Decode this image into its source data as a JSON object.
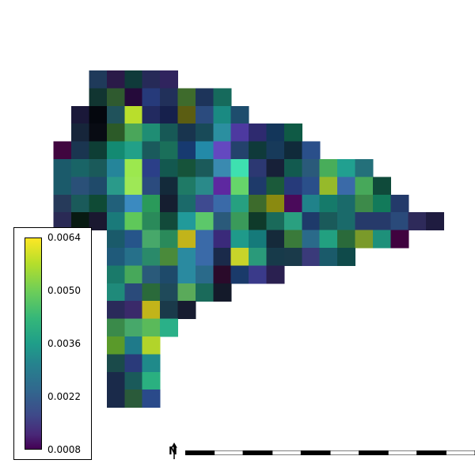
{
  "chart_data": {
    "type": "heatmap",
    "colormap": "viridis",
    "value_range": [
      0.0008,
      0.0064
    ],
    "colorbar_ticks": [
      "0.0064",
      "0.0050",
      "0.0036",
      "0.0022",
      "0.0008"
    ],
    "grid_origin_col": 0,
    "rows": [
      {
        "start": 5,
        "cells": [
          "#1f3a5a",
          "#2a1a48",
          "#0f3a3a",
          "#262a58",
          "#30245e"
        ]
      },
      {
        "start": 5,
        "cells": [
          "#113531",
          "#2f5a2f",
          "#250a3a",
          "#263a7a",
          "#21305a",
          "#3e6b2c",
          "#1d345a",
          "#166a5c"
        ]
      },
      {
        "start": 4,
        "cells": [
          "#1a1839",
          "#04070e",
          "#20525b",
          "#b9de2c",
          "#222a60",
          "#16204c",
          "#5b5d12",
          "#2b4b7e",
          "#1a8a82",
          "#1e4d6d"
        ]
      },
      {
        "start": 4,
        "cells": [
          "#16253a",
          "#080b13",
          "#2c5a28",
          "#4aa65a",
          "#1f8d74",
          "#175956",
          "#18344e",
          "#184a58",
          "#2b8fa0",
          "#4d39a0",
          "#2e2a6f",
          "#13365a",
          "#0f5a45"
        ]
      },
      {
        "start": 3,
        "cells": [
          "#40063f",
          "#1a3550",
          "#0e3e35",
          "#138a72",
          "#22a088",
          "#1a5a5c",
          "#1a6f5a",
          "#173a70",
          "#238aa8",
          "#6448c0",
          "#24426c",
          "#0f3a3a",
          "#173a5a",
          "#102a3a",
          "#2a4f8a"
        ]
      },
      {
        "start": 3,
        "cells": [
          "#1b5a6a",
          "#196466",
          "#1a5a5a",
          "#25859a",
          "#9ce84e",
          "#2b3f88",
          "#13584f",
          "#16533a",
          "#1b5a5a",
          "#3a8ab0",
          "#3ee0b0",
          "#2c3872",
          "#172038",
          "#125a4f",
          "#2a5a7a",
          "#48ad5a",
          "#21a090",
          "#24707a"
        ]
      },
      {
        "start": 3,
        "cells": [
          "#1b5a6a",
          "#2a5078",
          "#1f4a6a",
          "#2a9a8a",
          "#9ee856",
          "#2b4b7e",
          "#132a3a",
          "#1f7a66",
          "#2a8a8a",
          "#5e28a0",
          "#66d56a",
          "#1e3a6a",
          "#1b5a3a",
          "#263a7a",
          "#2a4f8a",
          "#96ba2a",
          "#3a6aa8",
          "#47a85a",
          "#0f4a3a"
        ]
      },
      {
        "start": 3,
        "cells": [
          "#263a5a",
          "#1a5a5a",
          "#0f4a35",
          "#21607a",
          "#3b8ac0",
          "#2a9a5a",
          "#151e30",
          "#1b6a6a",
          "#3e4a90",
          "#3a6aa8",
          "#26a080",
          "#3d6b2c",
          "#8a8a10",
          "#4a0a5a",
          "#20828a",
          "#157a6a",
          "#1a6a6a",
          "#3d8a4a",
          "#127a5a",
          "#233a6a"
        ]
      },
      {
        "start": 3,
        "cells": [
          "#2a2a55",
          "#081a12",
          "#1a1830",
          "#1a7a7a",
          "#5fc85a",
          "#2a8a5a",
          "#124a3a",
          "#219a9a",
          "#5cc86a",
          "#2a5a7a",
          "#3a9a5a",
          "#0f3a2a",
          "#1a6a5a",
          "#2aa080",
          "#1e3a6a",
          "#1a5a5a",
          "#1a6a6a",
          "#263a6a",
          "#263a6a",
          "#2a4a7a",
          "#2e2a5a",
          "#1f1c40"
        ]
      },
      {
        "start": 3,
        "cells": [
          "#ffffff00",
          "#ffffff00",
          "#ffffff00",
          "#1a5a6a",
          "#26558a",
          "#47a86a",
          "#2a8a5a",
          "#c2b41a",
          "#3a6aa8",
          "#3a2a7a",
          "#1f9a8a",
          "#157a7a",
          "#152a3a",
          "#3a7a3a",
          "#2a6a8a",
          "#22a080",
          "#2a6a3a",
          "#7a9a2a",
          "#1e907a",
          "#40023f"
        ]
      },
      {
        "start": 3,
        "cells": [
          "#ffffff00",
          "#ffffff00",
          "#ffffff00",
          "#1f5a7a",
          "#26708a",
          "#2a8a6a",
          "#4a8a3a",
          "#2a8aa0",
          "#3a6aa8",
          "#1a2a4a",
          "#c8d42a",
          "#2a9a7a",
          "#173a4a",
          "#1a3a4a",
          "#3a3a7a",
          "#1a5a6a",
          "#0f4a4a"
        ]
      },
      {
        "start": 3,
        "cells": [
          "#ffffff00",
          "#ffffff00",
          "#ffffff00",
          "#1a7a6a",
          "#47a85a",
          "#2a5a7a",
          "#1e4a6a",
          "#2a8aa0",
          "#2a6a8a",
          "#2a0a2a",
          "#1a3a6a",
          "#3a3a8a",
          "#2a2050"
        ]
      },
      {
        "start": 3,
        "cells": [
          "#ffffff00",
          "#ffffff00",
          "#ffffff00",
          "#1f8a7a",
          "#2a4a7a",
          "#2a6a3a",
          "#1f4a5a",
          "#5aaa5a",
          "#1a6a5a",
          "#141a2a"
        ]
      },
      {
        "start": 3,
        "cells": [
          "#ffffff00",
          "#ffffff00",
          "#ffffff00",
          "#2a2a5a",
          "#3a2a6a",
          "#c2b41a",
          "#1a3a4a",
          "#171c30"
        ]
      },
      {
        "start": 3,
        "cells": [
          "#ffffff00",
          "#ffffff00",
          "#ffffff00",
          "#3a8a4a",
          "#47a86a",
          "#5aba5a",
          "#2ab088"
        ]
      },
      {
        "start": 3,
        "cells": [
          "#ffffff00",
          "#ffffff00",
          "#ffffff00",
          "#5a9a2a",
          "#1f7a8a",
          "#b2d42a"
        ]
      },
      {
        "start": 3,
        "cells": [
          "#ffffff00",
          "#ffffff00",
          "#ffffff00",
          "#1a4a4a",
          "#2a3a7a",
          "#1f8a8a"
        ]
      },
      {
        "start": 3,
        "cells": [
          "#ffffff00",
          "#ffffff00",
          "#ffffff00",
          "#1a2a4a",
          "#1a5a5a",
          "#2ab080"
        ]
      },
      {
        "start": 3,
        "cells": [
          "#ffffff00",
          "#ffffff00",
          "#ffffff00",
          "#1a2a4a",
          "#2a5a3a",
          "#2a4a8a"
        ]
      }
    ]
  },
  "legend": {
    "ticks": [
      {
        "label": "0.0064",
        "value": 0.0064
      },
      {
        "label": "0.0050",
        "value": 0.005
      },
      {
        "label": "0.0036",
        "value": 0.0036
      },
      {
        "label": "0.0022",
        "value": 0.0022
      },
      {
        "label": "0.0008",
        "value": 0.0008
      }
    ]
  },
  "north_arrow": {
    "letter": "N"
  },
  "colors": {
    "viridis_top": "#fde725",
    "viridis_mid": "#21918c",
    "viridis_bottom": "#440154"
  }
}
